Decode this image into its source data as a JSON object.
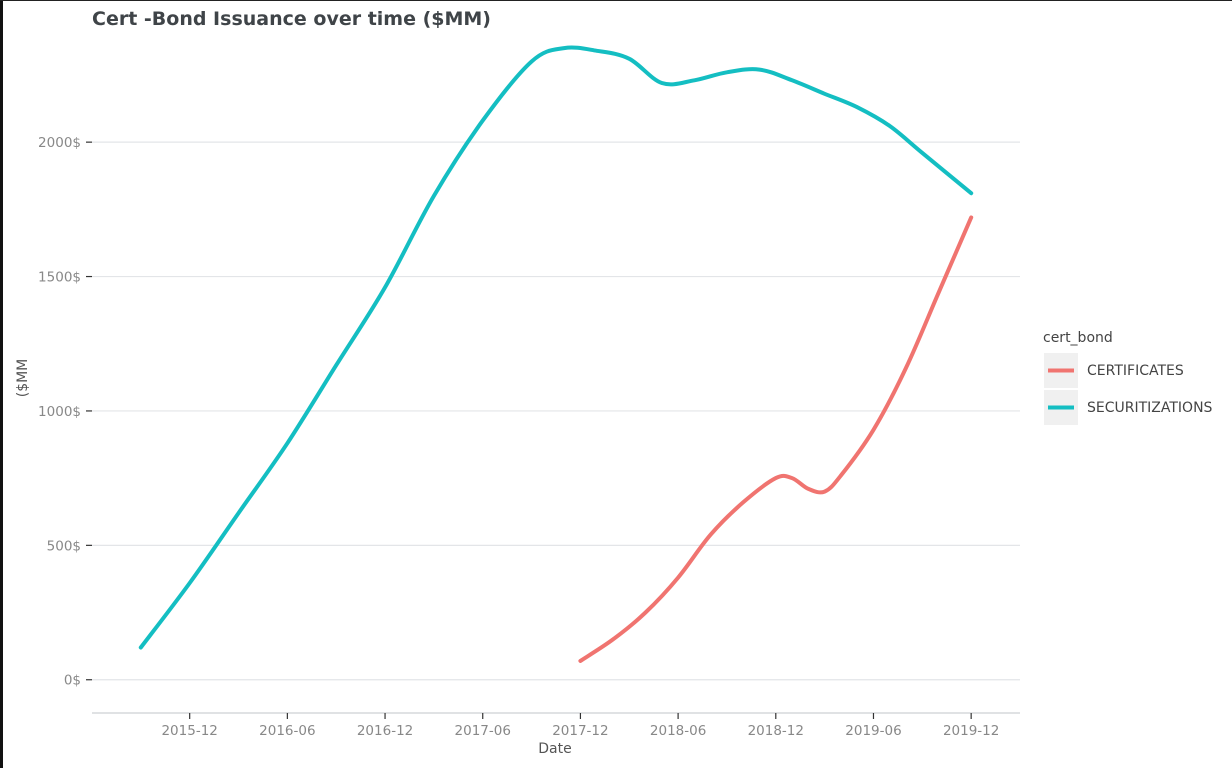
{
  "chart_data": {
    "type": "line",
    "title": "Cert -Bond Issuance over time ($MM)",
    "xlabel": "Date",
    "ylabel": "($MM",
    "x_ticks": [
      "2015-12",
      "2016-06",
      "2016-12",
      "2017-06",
      "2017-12",
      "2018-06",
      "2018-12",
      "2019-06",
      "2019-12"
    ],
    "y_ticks": [
      "0$",
      "500$",
      "1000$",
      "1500$",
      "2000$"
    ],
    "ylim": [
      -120,
      2380
    ],
    "xlim": [
      "2015-06",
      "2020-03"
    ],
    "grid": "horizontal",
    "legend": {
      "title": "cert_bond",
      "placement": "right"
    },
    "series": [
      {
        "name": "CERTIFICATES",
        "color": "#F07470",
        "x": [
          "2017-12",
          "2018-02",
          "2018-04",
          "2018-06",
          "2018-08",
          "2018-10",
          "2018-12",
          "2019-01",
          "2019-02",
          "2019-03",
          "2019-04",
          "2019-06",
          "2019-08",
          "2019-10",
          "2019-12"
        ],
        "y": [
          70,
          150,
          250,
          380,
          540,
          660,
          750,
          750,
          710,
          700,
          760,
          930,
          1160,
          1440,
          1720
        ]
      },
      {
        "name": "SECURITIZATIONS",
        "color": "#14BEC2",
        "x": [
          "2015-09",
          "2015-12",
          "2016-03",
          "2016-06",
          "2016-09",
          "2016-12",
          "2017-03",
          "2017-06",
          "2017-09",
          "2017-11",
          "2018-01",
          "2018-03",
          "2018-05",
          "2018-07",
          "2018-09",
          "2018-11",
          "2019-01",
          "2019-03",
          "2019-05",
          "2019-07",
          "2019-09",
          "2019-12"
        ],
        "y": [
          120,
          360,
          620,
          880,
          1170,
          1460,
          1800,
          2080,
          2300,
          2350,
          2340,
          2310,
          2220,
          2230,
          2260,
          2270,
          2230,
          2180,
          2130,
          2060,
          1960,
          1810
        ]
      }
    ]
  }
}
